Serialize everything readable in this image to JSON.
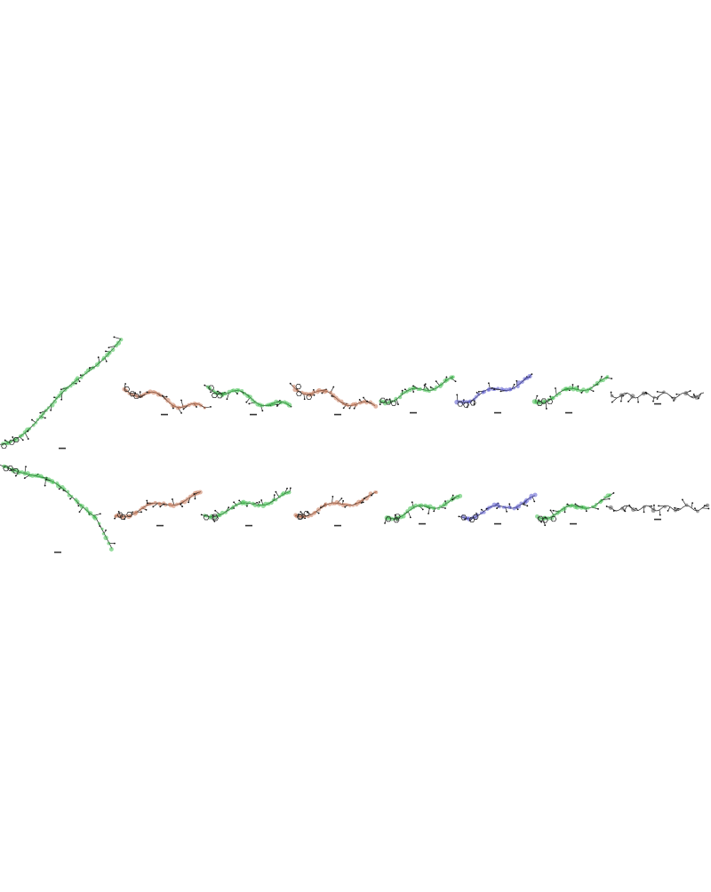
{
  "figure": {
    "colors": {
      "background": "#ffffff",
      "bond": "#222222",
      "label": "#333333",
      "heteroatom": "#111111",
      "groups": {
        "green": "#3fbf4f",
        "brown": "#c87a5a",
        "blue": "#5a5ad0",
        "orange": "#e0903a",
        "dark": "#555555"
      }
    },
    "rows": [
      {
        "name": "row-top",
        "molecules": [
          {
            "name": "mol-top-1",
            "color": "green"
          },
          {
            "name": "mol-top-2",
            "color": "brown"
          },
          {
            "name": "mol-top-3",
            "color": "green"
          },
          {
            "name": "mol-top-4",
            "color": "brown"
          },
          {
            "name": "mol-top-5",
            "color": "green"
          },
          {
            "name": "mol-top-6",
            "color": "blue"
          },
          {
            "name": "mol-top-7",
            "color": "green"
          },
          {
            "name": "mol-top-8",
            "color": "dark"
          }
        ]
      },
      {
        "name": "row-bottom",
        "molecules": [
          {
            "name": "mol-bottom-1",
            "color": "green"
          },
          {
            "name": "mol-bottom-2",
            "color": "brown"
          },
          {
            "name": "mol-bottom-3",
            "color": "green"
          },
          {
            "name": "mol-bottom-4",
            "color": "brown"
          },
          {
            "name": "mol-bottom-5",
            "color": "green"
          },
          {
            "name": "mol-bottom-6",
            "color": "blue"
          },
          {
            "name": "mol-bottom-7",
            "color": "green"
          },
          {
            "name": "mol-bottom-8",
            "color": "dark"
          }
        ]
      }
    ]
  }
}
